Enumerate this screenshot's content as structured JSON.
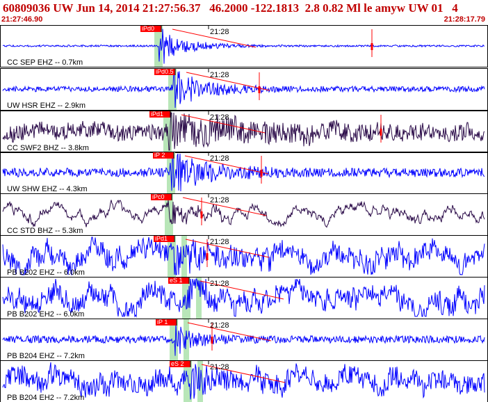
{
  "header": {
    "title": "60809036 UW Jun 14, 2014 21:27:56.37   46.2000 -122.1813  2.8 0.82 Ml le amyw UW 01   4",
    "start_time": "21:27:46.90",
    "end_time": "21:28:17.79"
  },
  "colors": {
    "border": "#000000",
    "wave_blue": "#0000ff",
    "wave_dark": "#2a0a48",
    "pick_red": "#ff0000",
    "window_green": "#b8e6b8",
    "header_red": "#c00000"
  },
  "traces": [
    {
      "label": "CC SEP EHZ -- 0.7km",
      "color": "#0000ff",
      "time_tick": "21:28",
      "pick": "iPd0",
      "pick2": "",
      "noise": 0.05,
      "burst": 1.0,
      "decay": 0.9,
      "wander": 0.0,
      "seed": 11
    },
    {
      "label": "UW HSR EHZ -- 2.9km",
      "color": "#0000ff",
      "time_tick": "21:28",
      "pick": "iPd0.5",
      "pick2": "",
      "noise": 0.15,
      "burst": 1.0,
      "decay": 1.1,
      "wander": 0.0,
      "seed": 23
    },
    {
      "label": "CC SWF2 BHZ -- 3.8km",
      "color": "#2a0a48",
      "time_tick": "21:28",
      "pick": "iPd1",
      "pick2": "",
      "noise": 0.45,
      "burst": 0.7,
      "decay": 2.5,
      "wander": 0.15,
      "seed": 37
    },
    {
      "label": "UW SHW EHZ -- 4.3km",
      "color": "#0000ff",
      "time_tick": "21:28",
      "pick": "iP 2",
      "pick2": "",
      "noise": 0.25,
      "burst": 1.0,
      "decay": 1.3,
      "wander": 0.0,
      "seed": 41
    },
    {
      "label": "CC STD BHZ -- 5.3km",
      "color": "#2a0a48",
      "time_tick": "21:28",
      "pick": "iPc0",
      "pick2": "",
      "noise": 0.1,
      "burst": 0.6,
      "decay": 0.9,
      "wander": 0.45,
      "seed": 53
    },
    {
      "label": "PB B202 EHZ -- 6.0km",
      "color": "#0000ff",
      "time_tick": "21:28",
      "pick": "iPd1",
      "pick2": "",
      "noise": 0.5,
      "burst": 0.6,
      "decay": 0.8,
      "wander": 0.5,
      "seed": 61
    },
    {
      "label": "PB B202 EH2 -- 6.0km",
      "color": "#0000ff",
      "time_tick": "21:28",
      "pick": "eS 1",
      "pick2": "",
      "noise": 0.5,
      "burst": 0.5,
      "decay": 0.6,
      "wander": 0.5,
      "seed": 73
    },
    {
      "label": "PB B204 EHZ -- 7.2km",
      "color": "#0000ff",
      "time_tick": "21:28",
      "pick": "iP 1",
      "pick2": "",
      "noise": 0.2,
      "burst": 0.7,
      "decay": 0.8,
      "wander": 0.0,
      "seed": 83
    },
    {
      "label": "PB B204 EH2 -- 7.2km",
      "color": "#0000ff",
      "time_tick": "21:28",
      "pick": "eS 2",
      "pick2": "",
      "noise": 0.55,
      "burst": 0.5,
      "decay": 0.6,
      "wander": 0.4,
      "seed": 97
    }
  ]
}
